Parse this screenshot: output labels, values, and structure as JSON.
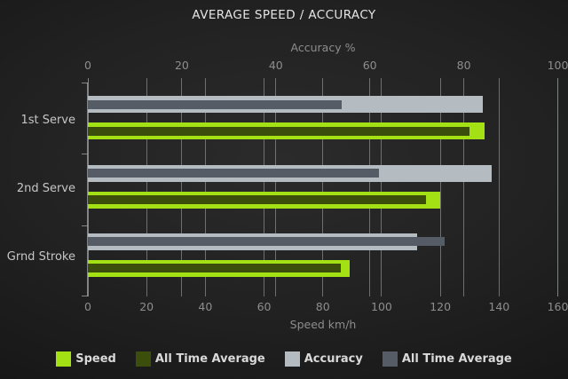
{
  "title": "AVERAGE SPEED / ACCURACY",
  "chart_data": {
    "type": "bar",
    "orientation": "horizontal",
    "title": "AVERAGE SPEED / ACCURACY",
    "categories": [
      "1st Serve",
      "2nd Serve",
      "Grnd Stroke"
    ],
    "axes": {
      "top": {
        "label": "Accuracy %",
        "min": 0,
        "max": 100,
        "ticks": [
          0,
          20,
          40,
          60,
          80,
          100
        ]
      },
      "bottom": {
        "label": "Speed km/h",
        "min": 0,
        "max": 160,
        "ticks": [
          0,
          20,
          40,
          60,
          80,
          100,
          120,
          140,
          160
        ]
      }
    },
    "grid": true,
    "series": [
      {
        "name": "Speed",
        "axis": "bottom",
        "role": "outer",
        "color": "#a3e114",
        "values": [
          135,
          120,
          89
        ]
      },
      {
        "name": "All Time Average",
        "axis": "bottom",
        "role": "inner",
        "color": "#3b4e0c",
        "values": [
          130,
          115,
          86
        ]
      },
      {
        "name": "Accuracy",
        "axis": "top",
        "role": "outer",
        "color": "#b4bbc1",
        "values": [
          84,
          86,
          70
        ]
      },
      {
        "name": "All Time Average",
        "axis": "top",
        "role": "inner",
        "color": "#555c65",
        "values": [
          54,
          62,
          76
        ]
      }
    ],
    "legend": [
      {
        "label": "Speed",
        "color": "#a3e114"
      },
      {
        "label": "All Time Average",
        "color": "#3b4e0c"
      },
      {
        "label": "Accuracy",
        "color": "#b4bbc1"
      },
      {
        "label": "All Time Average",
        "color": "#555c65"
      }
    ],
    "legend_position": "bottom",
    "colors": {
      "background_center": "#2b2b2b",
      "background_edge": "#0d0d0d",
      "gridline": "#84898b",
      "axis_text": "#8d8d8d",
      "category_text": "#c6c6c6",
      "title_text": "#e4e4e4"
    }
  }
}
